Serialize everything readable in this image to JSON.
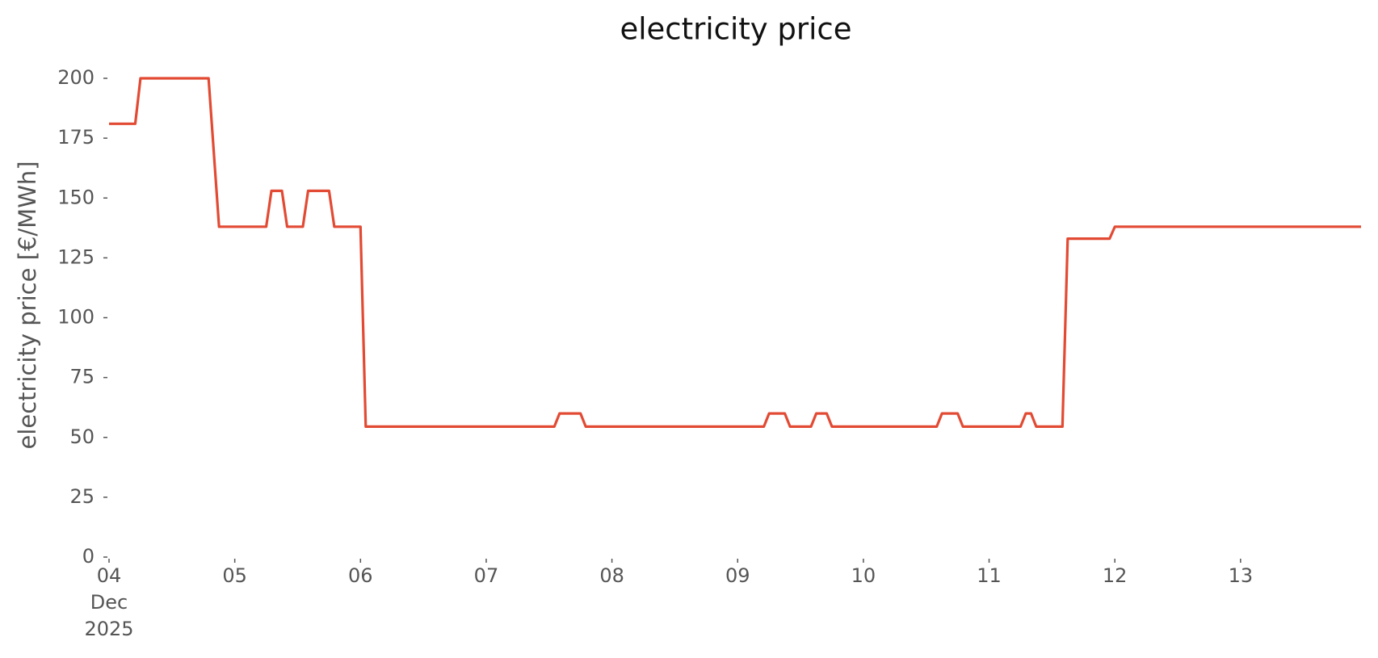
{
  "chart_data": {
    "type": "line",
    "title": "electricity price",
    "ylabel": "electricity price [€/MWh]",
    "x": [
      "2025-12-04T00:00",
      "2025-12-04T05:00",
      "2025-12-04T06:00",
      "2025-12-04T19:00",
      "2025-12-04T21:00",
      "2025-12-05T06:00",
      "2025-12-05T07:00",
      "2025-12-05T09:00",
      "2025-12-05T10:00",
      "2025-12-05T13:00",
      "2025-12-05T14:00",
      "2025-12-05T18:00",
      "2025-12-05T19:00",
      "2025-12-06T00:00",
      "2025-12-06T01:00",
      "2025-12-07T13:00",
      "2025-12-07T14:00",
      "2025-12-07T18:00",
      "2025-12-07T19:00",
      "2025-12-09T05:00",
      "2025-12-09T06:00",
      "2025-12-09T09:00",
      "2025-12-09T10:00",
      "2025-12-09T14:00",
      "2025-12-09T15:00",
      "2025-12-09T17:00",
      "2025-12-09T18:00",
      "2025-12-10T14:00",
      "2025-12-10T15:00",
      "2025-12-10T18:00",
      "2025-12-10T19:00",
      "2025-12-11T06:00",
      "2025-12-11T07:00",
      "2025-12-11T08:00",
      "2025-12-11T09:00",
      "2025-12-11T14:00",
      "2025-12-11T15:00",
      "2025-12-11T23:00",
      "2025-12-12T00:00",
      "2025-12-13T23:00"
    ],
    "series": [
      {
        "name": "electricity price",
        "color": "#e24a33",
        "values": [
          181,
          181,
          200,
          200,
          138,
          138,
          153,
          153,
          138,
          138,
          153,
          153,
          138,
          138,
          54.5,
          54.5,
          60,
          60,
          54.5,
          54.5,
          60,
          60,
          54.5,
          54.5,
          60,
          60,
          54.5,
          54.5,
          60,
          60,
          54.5,
          54.5,
          60,
          60,
          54.5,
          54.5,
          133,
          133,
          138,
          138
        ]
      }
    ],
    "xlim": [
      "2025-12-04T00:00",
      "2025-12-13T23:00"
    ],
    "xticks": [
      {
        "value": "2025-12-04",
        "label": "04 Dec 2025"
      },
      {
        "value": "2025-12-05",
        "label": "05"
      },
      {
        "value": "2025-12-06",
        "label": "06"
      },
      {
        "value": "2025-12-07",
        "label": "07"
      },
      {
        "value": "2025-12-08",
        "label": "08"
      },
      {
        "value": "2025-12-09",
        "label": "09"
      },
      {
        "value": "2025-12-10",
        "label": "10"
      },
      {
        "value": "2025-12-11",
        "label": "11"
      },
      {
        "value": "2025-12-12",
        "label": "12"
      },
      {
        "value": "2025-12-13",
        "label": "13"
      }
    ],
    "ylim": [
      0,
      200
    ],
    "yticks": [
      0,
      25,
      50,
      75,
      100,
      125,
      150,
      175,
      200
    ],
    "grid": false
  }
}
